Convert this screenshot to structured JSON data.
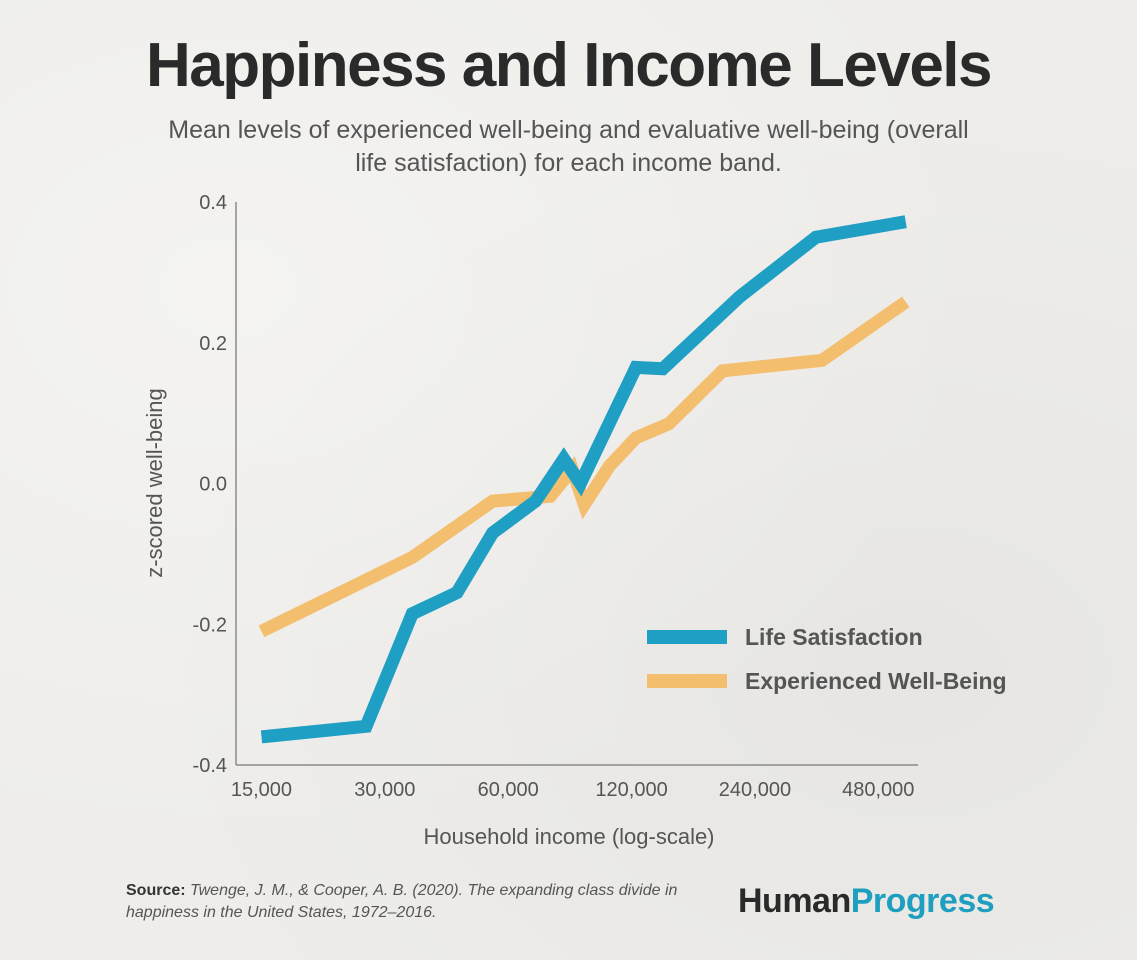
{
  "header": {
    "title": "Happiness and Income Levels",
    "subtitle": "Mean levels of experienced well-being and evaluative well-being (overall life satisfaction) for each income band."
  },
  "chart_data": {
    "type": "line",
    "xlabel": "Household income (log-scale)",
    "ylabel": "z-scored well-being",
    "x_scale": "log",
    "xlim": [
      13000,
      600000
    ],
    "ylim": [
      -0.4,
      0.4
    ],
    "x_ticks": [
      15000,
      30000,
      60000,
      120000,
      240000,
      480000
    ],
    "x_tick_labels": [
      "15,000",
      "30,000",
      "60,000",
      "120,000",
      "240,000",
      "480,000"
    ],
    "y_ticks": [
      0.4,
      0.2,
      0.0,
      -0.2,
      -0.4
    ],
    "y_tick_labels": [
      "0.4",
      "0.2",
      "0.0",
      "-0.2",
      "-0.4"
    ],
    "grid": false,
    "legend_position": "bottom-right",
    "series": [
      {
        "name": "Life Satisfaction",
        "color": "#1f9fc4",
        "points": [
          [
            15000,
            -0.36
          ],
          [
            27000,
            -0.345
          ],
          [
            35000,
            -0.185
          ],
          [
            45000,
            -0.155
          ],
          [
            55000,
            -0.07
          ],
          [
            70000,
            -0.025
          ],
          [
            82000,
            0.035
          ],
          [
            90000,
            0.0
          ],
          [
            123000,
            0.165
          ],
          [
            143000,
            0.163
          ],
          [
            220000,
            0.265
          ],
          [
            338000,
            0.35
          ],
          [
            560000,
            0.372
          ]
        ]
      },
      {
        "name": "Experienced Well-Being",
        "color": "#f3be6e",
        "points": [
          [
            15000,
            -0.21
          ],
          [
            35000,
            -0.105
          ],
          [
            55000,
            -0.025
          ],
          [
            76000,
            -0.018
          ],
          [
            86000,
            0.02
          ],
          [
            92000,
            -0.03
          ],
          [
            106000,
            0.025
          ],
          [
            123000,
            0.065
          ],
          [
            148000,
            0.085
          ],
          [
            200000,
            0.16
          ],
          [
            350000,
            0.175
          ],
          [
            560000,
            0.258
          ]
        ]
      }
    ]
  },
  "footer": {
    "source_label": "Source:",
    "source_text": "Twenge, J. M., & Cooper, A. B. (2020). The expanding class divide in happiness in the United States, 1972–2016.",
    "brand_part1": "Human",
    "brand_part2": "Progress"
  }
}
